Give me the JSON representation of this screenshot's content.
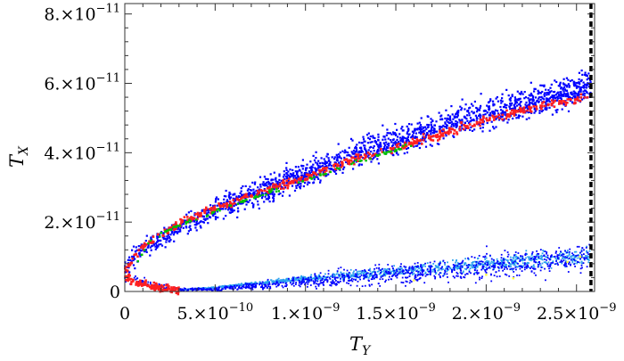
{
  "chart_data": {
    "type": "scatter",
    "title": "",
    "xlabel": "T",
    "xlabel_sub": "Y",
    "ylabel": "T",
    "ylabel_sub": "X",
    "xlim": [
      0,
      2.6e-09
    ],
    "ylim": [
      0,
      8.3e-11
    ],
    "x_ticks": [
      {
        "value": 0,
        "mantissa": "0",
        "exponent": ""
      },
      {
        "value": 5e-10,
        "mantissa": "5.×10",
        "exponent": "−10"
      },
      {
        "value": 1e-09,
        "mantissa": "1.×10",
        "exponent": "−9"
      },
      {
        "value": 1.5e-09,
        "mantissa": "1.5×10",
        "exponent": "−9"
      },
      {
        "value": 2e-09,
        "mantissa": "2.×10",
        "exponent": "−9"
      },
      {
        "value": 2.5e-09,
        "mantissa": "2.5×10",
        "exponent": "−9"
      }
    ],
    "y_ticks": [
      {
        "value": 0,
        "mantissa": "0",
        "exponent": ""
      },
      {
        "value": 2e-11,
        "mantissa": "2.×10",
        "exponent": "−11"
      },
      {
        "value": 4e-11,
        "mantissa": "4.×10",
        "exponent": "−11"
      },
      {
        "value": 6e-11,
        "mantissa": "6.×10",
        "exponent": "−11"
      },
      {
        "value": 8e-11,
        "mantissa": "8.×10",
        "exponent": "−11"
      }
    ],
    "vertical_line": {
      "x": 2.58e-09,
      "style": "dashed",
      "color": "#000000"
    },
    "series": [
      {
        "color": "#0000ff",
        "branch": "upper",
        "x": [
          0,
          1e-10,
          3e-10,
          5e-10,
          8e-10,
          1e-09,
          1.3e-09,
          1.5e-09,
          1.8e-09,
          2e-09,
          2.3e-09,
          2.58e-09
        ],
        "y_low": [
          3e-12,
          8e-12,
          1.4e-11,
          1.8e-11,
          2.45e-11,
          2.85e-11,
          3.4e-11,
          3.7e-11,
          4.2e-11,
          4.5e-11,
          4.9e-11,
          5.25e-11
        ],
        "y_high": [
          1.2e-11,
          1.6e-11,
          2.25e-11,
          2.85e-11,
          3.5e-11,
          3.95e-11,
          4.6e-11,
          4.95e-11,
          5.45e-11,
          5.8e-11,
          6.2e-11,
          6.6e-11
        ]
      },
      {
        "color": "#ff2020",
        "branch": "upper",
        "x": [
          0,
          1e-10,
          3e-10,
          5e-10,
          8e-10,
          1e-09,
          1.3e-09,
          1.5e-09,
          1.8e-09,
          2e-09,
          2.3e-09,
          2.58e-09
        ],
        "y": [
          6e-12,
          1.3e-11,
          1.95e-11,
          2.4e-11,
          2.95e-11,
          3.3e-11,
          3.85e-11,
          4.15e-11,
          4.6e-11,
          4.95e-11,
          5.35e-11,
          5.6e-11
        ]
      },
      {
        "color": "#00c000",
        "branch": "upper",
        "x": [
          5e-11,
          1.5e-10,
          3e-10,
          5e-10,
          7e-10,
          1e-09,
          1.3e-09,
          1.6e-09
        ],
        "y": [
          7e-12,
          1.55e-11,
          1.9e-11,
          2.3e-11,
          2.7e-11,
          3.2e-11,
          3.75e-11,
          4.25e-11
        ]
      },
      {
        "color": "#2aa0ee",
        "branch": "lower",
        "x": [
          3e-10,
          5e-10,
          8e-10,
          1e-09,
          1.3e-09,
          1.5e-09,
          1.8e-09,
          2e-09,
          2.3e-09,
          2.58e-09
        ],
        "y_low": [
          3e-13,
          8e-13,
          2e-12,
          2.6e-12,
          3.3e-12,
          3.8e-12,
          4.5e-12,
          5e-12,
          5.8e-12,
          6.5e-12
        ],
        "y_high": [
          6e-13,
          1.5e-12,
          3.5e-12,
          4.8e-12,
          6.5e-12,
          7.8e-12,
          9.6e-12,
          1.08e-11,
          1.25e-11,
          1.4e-11
        ]
      },
      {
        "color": "#0000ff",
        "branch": "lower",
        "x": [
          0,
          1e-10,
          2e-10,
          3e-10,
          5e-10,
          8e-10,
          1e-09,
          1.5e-09,
          2e-09,
          2.3e-09,
          2.58e-09
        ],
        "y_low": [
          1e-12,
          5e-13,
          2e-13,
          0,
          0,
          1e-13,
          3e-13,
          8e-13,
          1.5e-12,
          1.9e-12,
          2.3e-12
        ],
        "y_high": [
          8e-12,
          4.5e-12,
          2.5e-12,
          1.2e-12,
          1.2e-12,
          3.8e-12,
          5.6e-12,
          9.4e-12,
          1.3e-11,
          1.5e-11,
          1.7e-11
        ]
      },
      {
        "color": "#ff2020",
        "branch": "lower",
        "x": [
          0,
          5e-11,
          1e-10,
          1.5e-10,
          2e-10,
          2.5e-10,
          3e-10
        ],
        "y": [
          4.5e-12,
          3e-12,
          2.2e-12,
          1.5e-12,
          1e-12,
          6e-13,
          3e-13
        ]
      },
      {
        "color": "#ffff40",
        "branch": "lower",
        "x": [
          1.6e-09,
          2e-09,
          2.15e-09,
          2.45e-09,
          2.52e-09
        ],
        "y": [
          3.2e-12,
          4.8e-12,
          3.8e-12,
          8.5e-12,
          1e-11
        ]
      }
    ]
  }
}
